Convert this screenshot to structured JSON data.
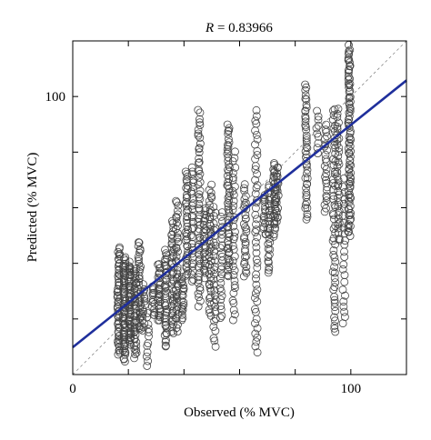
{
  "chart_data": {
    "type": "scatter",
    "title_prefix": "R",
    "title_value": " = 0.83966",
    "xlabel": "Observed (% MVC)",
    "ylabel": "Predicted (% MVC)",
    "xlim": [
      0,
      120
    ],
    "ylim": [
      0,
      120
    ],
    "x_tick_labels": [
      {
        "value": 0,
        "label": "0"
      },
      {
        "value": 100,
        "label": "100"
      }
    ],
    "y_tick_labels": [
      {
        "value": 100,
        "label": "100"
      }
    ],
    "x_minor_ticks": [
      20,
      40,
      60,
      80
    ],
    "y_minor_ticks": [
      20,
      40,
      60,
      80
    ],
    "grid": false,
    "colors": {
      "points": "#444444",
      "fit_line": "#1f2f9c",
      "identity_line": "#8a8a8a",
      "axes": "#000000"
    },
    "fit_line": {
      "intercept": 9.8,
      "slope": 0.8
    },
    "identity_line": {
      "intercept": 0,
      "slope": 1
    },
    "columns": [
      {
        "x": 16.5,
        "ymin": 7,
        "ymax": 46,
        "n": 55
      },
      {
        "x": 18.5,
        "ymin": 5,
        "ymax": 42,
        "n": 60
      },
      {
        "x": 20.5,
        "ymin": 11,
        "ymax": 40,
        "n": 55
      },
      {
        "x": 22.5,
        "ymin": 6,
        "ymax": 38,
        "n": 40
      },
      {
        "x": 24,
        "ymin": 16,
        "ymax": 48,
        "n": 35
      },
      {
        "x": 25.5,
        "ymin": 16,
        "ymax": 32,
        "n": 15
      },
      {
        "x": 27,
        "ymin": 3,
        "ymax": 22,
        "n": 12
      },
      {
        "x": 29,
        "ymin": 21,
        "ymax": 32,
        "n": 15
      },
      {
        "x": 31,
        "ymin": 19,
        "ymax": 40,
        "n": 30
      },
      {
        "x": 33.5,
        "ymin": 10,
        "ymax": 45,
        "n": 40
      },
      {
        "x": 36,
        "ymin": 15,
        "ymax": 55,
        "n": 40
      },
      {
        "x": 37.5,
        "ymin": 16,
        "ymax": 63,
        "n": 40
      },
      {
        "x": 39.5,
        "ymin": 20,
        "ymax": 35,
        "n": 20
      },
      {
        "x": 41,
        "ymin": 35,
        "ymax": 73,
        "n": 40
      },
      {
        "x": 43,
        "ymin": 33,
        "ymax": 75,
        "n": 30
      },
      {
        "x": 45.5,
        "ymin": 25,
        "ymax": 95,
        "n": 55
      },
      {
        "x": 47.5,
        "ymin": 35,
        "ymax": 60,
        "n": 25
      },
      {
        "x": 49.5,
        "ymin": 21,
        "ymax": 68,
        "n": 40
      },
      {
        "x": 51,
        "ymin": 10,
        "ymax": 60,
        "n": 30
      },
      {
        "x": 53.5,
        "ymin": 20,
        "ymax": 58,
        "n": 25
      },
      {
        "x": 56,
        "ymin": 35,
        "ymax": 90,
        "n": 55
      },
      {
        "x": 58,
        "ymin": 20,
        "ymax": 80,
        "n": 35
      },
      {
        "x": 62,
        "ymin": 35,
        "ymax": 68,
        "n": 30
      },
      {
        "x": 66,
        "ymin": 8,
        "ymax": 95,
        "n": 50
      },
      {
        "x": 69,
        "ymin": 50,
        "ymax": 65,
        "n": 15
      },
      {
        "x": 70.5,
        "ymin": 37,
        "ymax": 68,
        "n": 30
      },
      {
        "x": 72.5,
        "ymin": 50,
        "ymax": 76,
        "n": 30
      },
      {
        "x": 73.5,
        "ymin": 55,
        "ymax": 75,
        "n": 20
      },
      {
        "x": 84,
        "ymin": 56,
        "ymax": 104,
        "n": 45
      },
      {
        "x": 88,
        "ymin": 80,
        "ymax": 95,
        "n": 10
      },
      {
        "x": 91,
        "ymin": 58,
        "ymax": 90,
        "n": 25
      },
      {
        "x": 94,
        "ymin": 15,
        "ymax": 96,
        "n": 55
      },
      {
        "x": 95.5,
        "ymin": 48,
        "ymax": 95,
        "n": 35
      },
      {
        "x": 97.5,
        "ymin": 18,
        "ymax": 70,
        "n": 25
      },
      {
        "x": 99.5,
        "ymin": 50,
        "ymax": 118,
        "n": 90
      }
    ]
  }
}
